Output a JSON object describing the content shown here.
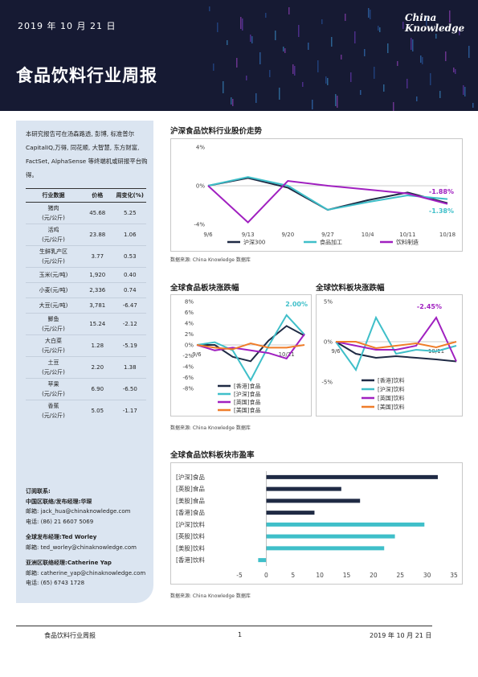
{
  "header": {
    "date": "2019 年 10 月 21 日",
    "title": "食品饮料行业周报",
    "logo_line1": "China",
    "logo_line2": "Knowledge"
  },
  "sidebar": {
    "intro": "本研究报告可在汤森路透, 彭博, 标准普尔 CapitalIQ,万得, 同花顺, 大智慧, 东方财富, FactSet, AlphaSense 等终端机或研报平台购得。",
    "table": {
      "headers": [
        "行业数据",
        "价格",
        "周变化(%)"
      ],
      "rows": [
        {
          "name": "猪肉",
          "unit": "(元/公斤)",
          "price": "45.68",
          "change": "5.25"
        },
        {
          "name": "活鸡",
          "unit": "(元/公斤)",
          "price": "23.88",
          "change": "1.06"
        },
        {
          "name": "生鲜乳产区",
          "unit": "(元/公斤)",
          "price": "3.77",
          "change": "0.53"
        },
        {
          "name": "玉米(元/吨)",
          "unit": "",
          "price": "1,920",
          "change": "0.40"
        },
        {
          "name": "小麦(元/吨)",
          "unit": "",
          "price": "2,336",
          "change": "0.74"
        },
        {
          "name": "大豆(元/吨)",
          "unit": "",
          "price": "3,781",
          "change": "-6.47"
        },
        {
          "name": "鲫鱼",
          "unit": "(元/公斤)",
          "price": "15.24",
          "change": "-2.12"
        },
        {
          "name": "大白菜",
          "unit": "(元/公斤)",
          "price": "1.28",
          "change": "-5.19"
        },
        {
          "name": "土豆",
          "unit": "(元/公斤)",
          "price": "2.20",
          "change": "1.38"
        },
        {
          "name": "苹果",
          "unit": "(元/公斤)",
          "price": "6.90",
          "change": "-6.50"
        },
        {
          "name": "香蕉",
          "unit": "(元/公斤)",
          "price": "5.05",
          "change": "-1.17"
        }
      ]
    },
    "contacts": {
      "subscribe": "订阅联系:",
      "cn_label": "中国区联络/发布经理:",
      "cn_name": "华琛",
      "cn_email": "邮箱: jack_hua@chinaknowledge.com",
      "cn_phone": "电话: (86) 21 6607 5069",
      "global_label": "全球发布经理:",
      "global_name": "Ted Worley",
      "global_email": "邮箱: ted_worley@chinaknowledge.com",
      "global_phone": "",
      "asia_label": "亚洲区联络经理:",
      "asia_name": "Catherine Yap",
      "asia_email": "邮箱: catherine_yap@chinaknowledge.com",
      "asia_phone": "电话: (65) 6743 1728"
    }
  },
  "sections": {
    "chart1_title": "沪深食品饮料行业股价走势",
    "chart2_title": "全球食品板块涨跌幅",
    "chart3_title": "全球饮料板块涨跌幅",
    "chart4_title": "全球食品饮料板块市盈率",
    "source": "数据来源: China Knowledge 数据库"
  },
  "footer": {
    "left": "食品饮料行业周报",
    "page": "1",
    "right": "2019 年 10 月 21 日"
  },
  "colors": {
    "navy": "#1f2a44",
    "teal": "#3fbfc9",
    "purple": "#a020c0",
    "orange": "#ef7d2a",
    "header_bg": "#161a33",
    "sidebar_bg": "#dbe5f1"
  },
  "chart_data": [
    {
      "type": "line",
      "title": "沪深食品饮料行业股价走势",
      "x": [
        "9/6",
        "9/13",
        "9/20",
        "9/27",
        "10/4",
        "10/11",
        "10/18"
      ],
      "yticks": [
        "4%",
        "0%",
        "-4%"
      ],
      "ylim": [
        -4,
        4
      ],
      "series": [
        {
          "name": "沪深300",
          "color": "#1f2a44",
          "values": [
            0.0,
            0.8,
            -0.2,
            -2.5,
            -1.5,
            -0.7,
            -1.8
          ]
        },
        {
          "name": "食品加工",
          "color": "#3fbfc9",
          "values": [
            0.0,
            0.9,
            0.0,
            -2.5,
            -1.7,
            -1.0,
            -1.38
          ]
        },
        {
          "name": "饮料制造",
          "color": "#a020c0",
          "values": [
            0.0,
            -3.8,
            0.5,
            0.0,
            -0.4,
            -0.8,
            -1.88
          ]
        }
      ],
      "labels": [
        "-1.88%",
        "-1.38%"
      ]
    },
    {
      "type": "line",
      "title": "全球食品板块涨跌幅",
      "x": [
        "9/6",
        "",
        "",
        "",
        "",
        "10/11",
        ""
      ],
      "yticks": [
        "8%",
        "6%",
        "4%",
        "2%",
        "0%",
        "-2%",
        "-4%",
        "-6%",
        "-8%"
      ],
      "ylim": [
        -8,
        8
      ],
      "series": [
        {
          "name": "[香港]食品",
          "color": "#1f2a44",
          "values": [
            0.0,
            0.0,
            -2.2,
            -3.0,
            0.8,
            3.5,
            1.7
          ]
        },
        {
          "name": "[沪深]食品",
          "color": "#3fbfc9",
          "values": [
            0.0,
            0.5,
            -1.0,
            -6.5,
            -0.2,
            5.5,
            1.9
          ]
        },
        {
          "name": "[英国]食品",
          "color": "#a020c0",
          "values": [
            0.0,
            -1.0,
            -0.5,
            -1.0,
            -1.5,
            -2.5,
            2.0
          ]
        },
        {
          "name": "[美国]食品",
          "color": "#ef7d2a",
          "values": [
            0.0,
            -0.5,
            -0.8,
            0.3,
            -0.5,
            -0.5,
            0.0
          ]
        }
      ],
      "labels": [
        "2.00%"
      ]
    },
    {
      "type": "line",
      "title": "全球饮料板块涨跌幅",
      "x": [
        "9/6",
        "",
        "",
        "",
        "",
        "10/11",
        ""
      ],
      "yticks": [
        "5%",
        "0%",
        "-5%"
      ],
      "ylim": [
        -5,
        5
      ],
      "series": [
        {
          "name": "[香港]饮料",
          "color": "#1f2a44",
          "values": [
            0.0,
            -1.5,
            -2.0,
            -1.8,
            -2.0,
            -2.2,
            -2.45
          ]
        },
        {
          "name": "[沪深]饮料",
          "color": "#3fbfc9",
          "values": [
            0.0,
            -3.5,
            3.0,
            -1.5,
            -1.0,
            -1.2,
            -0.5
          ]
        },
        {
          "name": "[英国]饮料",
          "color": "#a020c0",
          "values": [
            0.0,
            -0.5,
            -1.0,
            -1.0,
            -0.5,
            3.0,
            -2.45
          ]
        },
        {
          "name": "[美国]饮料",
          "color": "#ef7d2a",
          "values": [
            0.0,
            0.0,
            -0.8,
            -0.5,
            -0.2,
            -0.7,
            0.0
          ]
        }
      ],
      "labels": [
        "-2.45%"
      ]
    },
    {
      "type": "bar",
      "orientation": "horizontal",
      "title": "全球食品饮料板块市盈率",
      "categories": [
        "[沪深]食品",
        "[英股]食品",
        "[美股]食品",
        "[香港]食品",
        "[沪深]饮料",
        "[英股]饮料",
        "[美股]饮料",
        "[香港]饮料"
      ],
      "values": [
        32,
        14,
        17.5,
        9,
        29.5,
        24,
        22,
        -1.5
      ],
      "colors": [
        "#1f2a44",
        "#1f2a44",
        "#1f2a44",
        "#1f2a44",
        "#3fbfc9",
        "#3fbfc9",
        "#3fbfc9",
        "#3fbfc9"
      ],
      "xlim": [
        -5,
        35
      ],
      "xticks": [
        "-5",
        "0",
        "5",
        "10",
        "15",
        "20",
        "25",
        "30",
        "35"
      ]
    }
  ]
}
